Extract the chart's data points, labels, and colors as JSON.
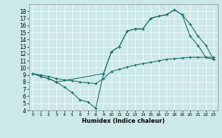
{
  "xlabel": "Humidex (Indice chaleur)",
  "bg_color": "#cce8e8",
  "line_color": "#1a6b6b",
  "xlim": [
    -0.5,
    23.5
  ],
  "ylim": [
    4,
    19
  ],
  "xticks": [
    0,
    1,
    2,
    3,
    4,
    5,
    6,
    7,
    8,
    9,
    10,
    11,
    12,
    13,
    14,
    15,
    16,
    17,
    18,
    19,
    20,
    21,
    22,
    23
  ],
  "yticks": [
    4,
    5,
    6,
    7,
    8,
    9,
    10,
    11,
    12,
    13,
    14,
    15,
    16,
    17,
    18
  ],
  "c1x": [
    0,
    1,
    2,
    3,
    4,
    5,
    6,
    7,
    8,
    9,
    10,
    11,
    12,
    13,
    14,
    15,
    16,
    17,
    18,
    19,
    20,
    21,
    22,
    23
  ],
  "c1y": [
    9.2,
    8.8,
    8.5,
    8.0,
    7.3,
    6.5,
    5.5,
    5.2,
    4.3,
    9.2,
    12.3,
    13.0,
    15.2,
    15.5,
    15.5,
    17.0,
    17.3,
    17.5,
    18.2,
    17.5,
    14.5,
    13.2,
    11.5,
    11.2
  ],
  "c2x": [
    0,
    1,
    2,
    3,
    9,
    10,
    11,
    12,
    13,
    14,
    15,
    16,
    17,
    18,
    19,
    20,
    21,
    22,
    23
  ],
  "c2y": [
    9.2,
    8.8,
    8.5,
    8.0,
    9.2,
    12.3,
    13.0,
    15.2,
    15.5,
    15.5,
    17.0,
    17.3,
    17.5,
    18.2,
    17.5,
    16.2,
    14.5,
    13.2,
    11.2
  ],
  "c3x": [
    0,
    1,
    2,
    3,
    4,
    5,
    6,
    7,
    8,
    9,
    10,
    11,
    12,
    13,
    14,
    15,
    16,
    17,
    18,
    19,
    20,
    21,
    22,
    23
  ],
  "c3y": [
    9.2,
    9.0,
    8.8,
    8.5,
    8.3,
    8.2,
    8.0,
    7.9,
    7.8,
    8.5,
    9.5,
    9.8,
    10.1,
    10.4,
    10.6,
    10.8,
    11.0,
    11.2,
    11.3,
    11.4,
    11.5,
    11.5,
    11.5,
    11.5
  ]
}
